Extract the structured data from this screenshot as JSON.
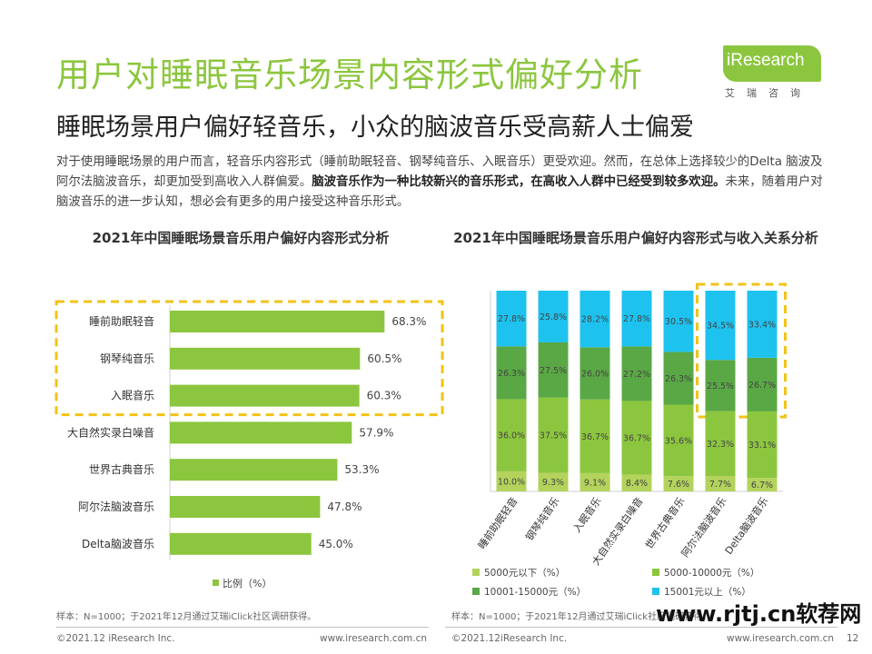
{
  "header": {
    "title": "用户对睡眠音乐场景内容形式偏好分析",
    "subtitle": "睡眠场景用户偏好轻音乐，小众的脑波音乐受高薪人士偏爱",
    "logo_text": "iResearch",
    "logo_cn": "艾瑞咨询"
  },
  "intro": {
    "part1": "对于使用睡眠场景的用户而言，轻音乐内容形式（睡前助眠轻音、钢琴纯音乐、入眠音乐）更受欢迎。然而，在总体上选择较少的Delta 脑波及阿尔法脑波音乐，却更加受到高收入人群偏爱。",
    "bold": "脑波音乐作为一种比较新兴的音乐形式，在高收入人群中已经受到较多欢迎。",
    "part2": "未来，随着用户对脑波音乐的进一步认知，想必会有更多的用户接受这种音乐形式。"
  },
  "colors": {
    "accent": "#8cc63f",
    "s5000": "#b3d35c",
    "s5000_10000": "#8cc63f",
    "s10001_15000": "#5aa845",
    "s15001": "#1ec2ef",
    "highlight": "#f2c318"
  },
  "chart_data": [
    {
      "type": "bar",
      "orientation": "horizontal",
      "title": "2021年中国睡眠场景音乐用户偏好内容形式分析",
      "categories": [
        "睡前助眠轻音",
        "钢琴纯音乐",
        "入眠音乐",
        "大自然实录白噪音",
        "世界古典音乐",
        "阿尔法脑波音乐",
        "Delta脑波音乐"
      ],
      "values": [
        68.3,
        60.5,
        60.3,
        57.9,
        53.3,
        47.8,
        45.0
      ],
      "value_labels": [
        "68.3%",
        "60.5%",
        "60.3%",
        "57.9%",
        "53.3%",
        "47.8%",
        "45.0%"
      ],
      "legend": "比例（%）",
      "legend_position": "bottom",
      "highlight_categories": [
        0,
        1,
        2
      ],
      "xlim": [
        0,
        100
      ],
      "grid": false,
      "note": "样本：N=1000；于2021年12月通过艾瑞iClick社区调研获得。"
    },
    {
      "type": "bar",
      "stacked": true,
      "title": "2021年中国睡眠场景音乐用户偏好内容形式与收入关系分析",
      "categories": [
        "睡前助眠轻音",
        "钢琴纯音乐",
        "入眠音乐",
        "大自然实录白噪音",
        "世界古典音乐",
        "阿尔法脑波音乐",
        "Delta脑波音乐"
      ],
      "series": [
        {
          "name": "5000元以下（%）",
          "values": [
            10.0,
            9.3,
            9.1,
            8.4,
            7.6,
            7.7,
            6.7
          ],
          "labels": [
            "10.0%",
            "9.3%",
            "9.1%",
            "8.4%",
            "7.6%",
            "7.7%",
            "6.7%"
          ]
        },
        {
          "name": "5000-10000元（%）",
          "values": [
            36.0,
            37.5,
            36.7,
            36.7,
            35.6,
            32.3,
            33.1
          ],
          "labels": [
            "36.0%",
            "37.5%",
            "36.7%",
            "36.7%",
            "35.6%",
            "32.3%",
            "33.1%"
          ]
        },
        {
          "name": "10001-15000元（%）",
          "values": [
            26.3,
            27.5,
            26.0,
            27.2,
            26.3,
            25.5,
            26.7
          ],
          "labels": [
            "26.3%",
            "27.5%",
            "26.0%",
            "27.2%",
            "26.3%",
            "25.5%",
            "26.7%"
          ]
        },
        {
          "name": "15001元以上（%）",
          "values": [
            27.8,
            25.8,
            28.2,
            27.8,
            30.5,
            34.5,
            33.4
          ],
          "labels": [
            "27.8%",
            "25.8%",
            "28.2%",
            "27.8%",
            "30.5%",
            "34.5%",
            "33.4%"
          ]
        }
      ],
      "ylim": [
        0,
        100
      ],
      "highlight_categories": [
        5,
        6
      ],
      "legend_position": "bottom",
      "grid": false,
      "note": "样本：N=1000；于2021年12月通过艾瑞iClick社区调研获得。"
    }
  ],
  "footer": {
    "left_copyright": "©2021.12 iResearch Inc.",
    "left_url": "www.iresearch.com.cn",
    "right_copyright": "©2021.12iResearch Inc.",
    "right_url": "www.iresearch.com.cn",
    "page": "12",
    "watermark": "www.rjtj.cn软荐网"
  }
}
